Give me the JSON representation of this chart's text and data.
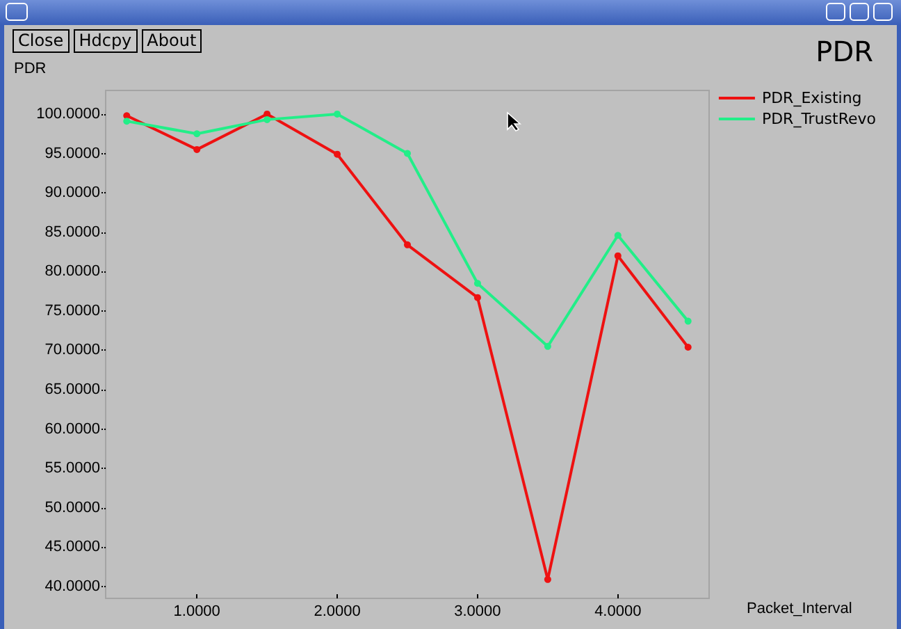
{
  "chart_data": {
    "type": "line",
    "title": "PDR",
    "ylabel": "PDR",
    "xlabel": "Packet_Interval",
    "annotations": [
      "Close",
      "Hdcpy",
      "About"
    ],
    "x": [
      0.5,
      1,
      1.5,
      2,
      2.5,
      3,
      3.5,
      4,
      4.5
    ],
    "series": [
      {
        "name": "PDR_Existing",
        "color": "#ee1111",
        "values": [
          99.8,
          95.5,
          100,
          94.9,
          83.4,
          76.7,
          40.9,
          82,
          70.4
        ]
      },
      {
        "name": "PDR_TrustRevo",
        "color": "#22ee88",
        "values": [
          99.1,
          97.5,
          99.3,
          100,
          95,
          78.5,
          70.5,
          84.6,
          73.7
        ]
      }
    ],
    "xlim": [
      0.35,
      4.65
    ],
    "ylim": [
      38.5,
      103
    ],
    "xticks": [
      {
        "value": 1,
        "label": "1.0000"
      },
      {
        "value": 2,
        "label": "2.0000"
      },
      {
        "value": 3,
        "label": "3.0000"
      },
      {
        "value": 4,
        "label": "4.0000"
      }
    ],
    "yticks": [
      {
        "value": 40,
        "label": "40.0000"
      },
      {
        "value": 45,
        "label": "45.0000"
      },
      {
        "value": 50,
        "label": "50.0000"
      },
      {
        "value": 55,
        "label": "55.0000"
      },
      {
        "value": 60,
        "label": "60.0000"
      },
      {
        "value": 65,
        "label": "65.0000"
      },
      {
        "value": 70,
        "label": "70.0000"
      },
      {
        "value": 75,
        "label": "75.0000"
      },
      {
        "value": 80,
        "label": "80.0000"
      },
      {
        "value": 85,
        "label": "85.0000"
      },
      {
        "value": 90,
        "label": "90.0000"
      },
      {
        "value": 95,
        "label": "95.0000"
      },
      {
        "value": 100,
        "label": "100.0000"
      }
    ],
    "grid": false,
    "legend": "top right",
    "marker": "circle",
    "line_style": "solid"
  }
}
